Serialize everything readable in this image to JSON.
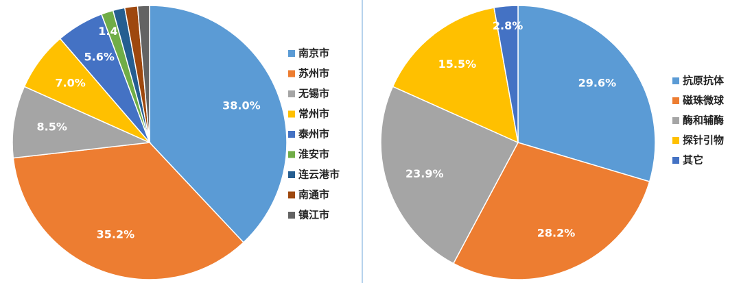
{
  "chart_data": [
    {
      "type": "pie",
      "categories": [
        "南京市",
        "苏州市",
        "无锡市",
        "常州市",
        "泰州市",
        "淮安市",
        "连云港市",
        "南通市",
        "镇江市"
      ],
      "values": [
        38.0,
        35.2,
        8.5,
        7.0,
        5.6,
        1.4,
        1.4,
        1.5,
        1.4
      ],
      "value_labels": [
        "38.0%",
        "35.2%",
        "8.5%",
        "7.0%",
        "5.6%",
        "1.4%",
        null,
        null,
        null
      ],
      "colors": [
        "#5b9bd5",
        "#ed7d31",
        "#a5a5a5",
        "#ffc000",
        "#4472c4",
        "#70ad47",
        "#255e91",
        "#9e480e",
        "#636363"
      ],
      "legend": "right"
    },
    {
      "type": "pie",
      "categories": [
        "抗原抗体",
        "磁珠微球",
        "酶和辅酶",
        "探针引物",
        "其它"
      ],
      "values": [
        29.6,
        28.2,
        23.9,
        15.5,
        2.8
      ],
      "value_labels": [
        "29.6%",
        "28.2%",
        "23.9%",
        "15.5%",
        "2.8%"
      ],
      "colors": [
        "#5b9bd5",
        "#ed7d31",
        "#a5a5a5",
        "#ffc000",
        "#4472c4"
      ],
      "legend": "right"
    }
  ]
}
